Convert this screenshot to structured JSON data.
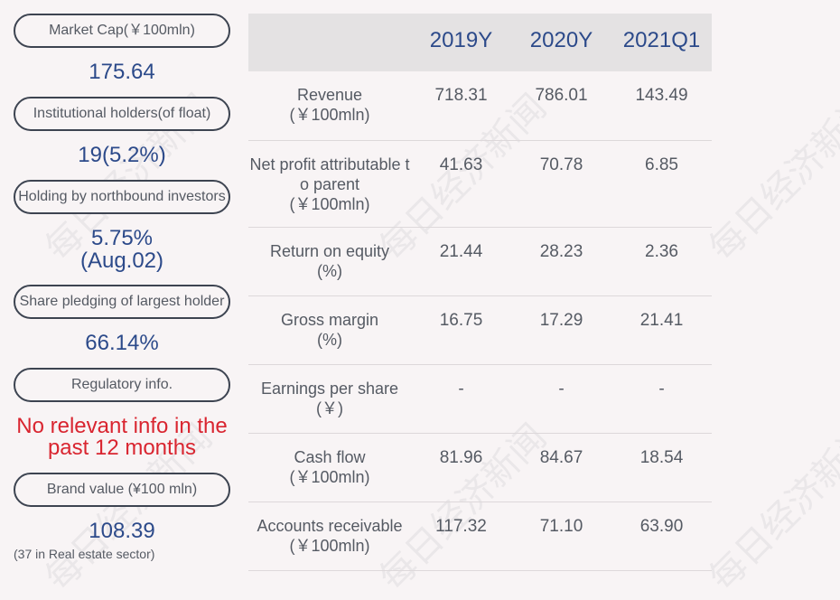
{
  "left": {
    "market_cap": {
      "label": "Market Cap(￥100mln)",
      "value": "175.64"
    },
    "institutional": {
      "label": "Institutional holders(of float)",
      "value": "19(5.2%)"
    },
    "northbound": {
      "label": "Holding by northbound investors",
      "value_line1": "5.75%",
      "value_line2": "(Aug.02)"
    },
    "pledging": {
      "label": "Share pledging of largest holder",
      "value": "66.14%"
    },
    "regulatory": {
      "label": "Regulatory info.",
      "value_line1": "No relevant info in the",
      "value_line2": "past 12 months"
    },
    "brand": {
      "label": "Brand value (¥100 mln)",
      "value": "108.39",
      "note": "(37 in Real estate sector)"
    }
  },
  "table": {
    "headers": [
      "",
      "2019Y",
      "2020Y",
      "2021Q1"
    ],
    "rows": [
      {
        "label": "Revenue",
        "unit": "(￥100mln)",
        "values": [
          "718.31",
          "786.01",
          "143.49"
        ]
      },
      {
        "label1": "Net profit attributable t",
        "label2": "o parent",
        "unit": "(￥100mln)",
        "values": [
          "41.63",
          "70.78",
          "6.85"
        ]
      },
      {
        "label": "Return on equity",
        "unit": "(%)",
        "values": [
          "21.44",
          "28.23",
          "2.36"
        ]
      },
      {
        "label": "Gross margin",
        "unit": "(%)",
        "values": [
          "16.75",
          "17.29",
          "21.41"
        ]
      },
      {
        "label": "Earnings per share",
        "unit": "(￥)",
        "values": [
          "-",
          "-",
          "-"
        ]
      },
      {
        "label": "Cash flow",
        "unit": "(￥100mln)",
        "values": [
          "81.96",
          "84.67",
          "18.54"
        ]
      },
      {
        "label": "Accounts receivable",
        "unit": "(￥100mln)",
        "values": [
          "117.32",
          "71.10",
          "63.90"
        ]
      }
    ]
  },
  "watermark": "每日经济新闻"
}
